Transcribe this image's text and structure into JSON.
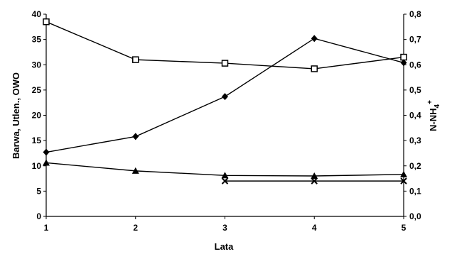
{
  "chart_data": {
    "type": "line",
    "xlabel": "Lata",
    "ylabel_left": "Barwa, Utlen., OWO",
    "ylabel_right_base": "N-NH",
    "ylabel_right_sub": "4",
    "ylabel_right_sup": "+",
    "x": [
      1,
      2,
      3,
      4,
      5
    ],
    "x_tick_labels": [
      "1",
      "2",
      "3",
      "4",
      "5"
    ],
    "ylim_left": [
      0,
      40
    ],
    "ylim_right": [
      0,
      0.8
    ],
    "y_left_ticks": [
      "0",
      "5",
      "10",
      "15",
      "20",
      "25",
      "30",
      "35",
      "40"
    ],
    "y_right_ticks": [
      "0,0",
      "0,1",
      "0,2",
      "0,3",
      "0,4",
      "0,5",
      "0,6",
      "0,7",
      "0,8"
    ],
    "grid": false,
    "legend": "none",
    "series": [
      {
        "marker": "square",
        "axis": "left",
        "x": [
          1,
          2,
          3,
          4,
          5
        ],
        "values": [
          38.5,
          31.0,
          30.3,
          29.2,
          31.5
        ]
      },
      {
        "marker": "diamond",
        "axis": "left",
        "x": [
          1,
          2,
          3,
          4,
          5
        ],
        "values": [
          12.7,
          15.8,
          23.7,
          35.2,
          30.4
        ]
      },
      {
        "marker": "triangle",
        "axis": "left",
        "x": [
          1,
          2,
          3,
          4,
          5
        ],
        "values": [
          10.6,
          9.0,
          8.1,
          8.0,
          8.3
        ]
      },
      {
        "marker": "x",
        "axis": "right",
        "x": [
          3,
          4,
          5
        ],
        "values": [
          0.14,
          0.14,
          0.14
        ]
      }
    ]
  }
}
